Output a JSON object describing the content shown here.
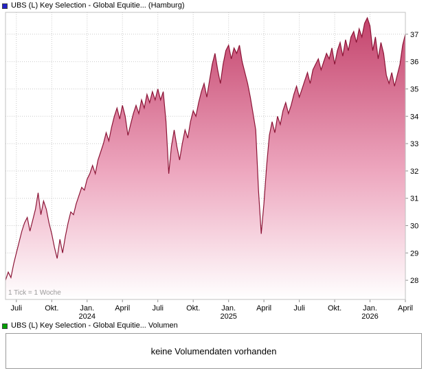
{
  "price_chart": {
    "title": "UBS (L) Key Selection - Global Equitie... (Hamburg)",
    "legend_color": "#2323c8"
  },
  "volume_chart": {
    "title": "UBS (L) Key Selection - Global Equitie... Volumen",
    "legend_color": "#00a000",
    "message": "keine Volumendaten vorhanden"
  },
  "style": {
    "line_color": "#8B1436",
    "fill_top": "#C24069",
    "fill_mid": "#EDA6BE",
    "fill_bottom": "#FFFFFF",
    "grid_color": "#c9c9c9",
    "axis_color": "#8f8f8f",
    "border_color": "#c0c0c0",
    "tick_note_color": "#9a9a9a"
  },
  "chart_data": {
    "type": "area",
    "title": "UBS (L) Key Selection - Global Equitie... (Hamburg)",
    "tick_note": "1 Tick = 1 Woche",
    "xlabel": "",
    "ylabel": "",
    "ylim": [
      27.3,
      37.8
    ],
    "y_ticks": [
      28,
      29,
      30,
      31,
      32,
      33,
      34,
      35,
      36,
      37
    ],
    "grid": true,
    "x_unit": "week",
    "x_ticks": [
      {
        "week": 4,
        "label": "Juli"
      },
      {
        "week": 17,
        "label": "Okt."
      },
      {
        "week": 30,
        "label": "Jan.",
        "year": "2024"
      },
      {
        "week": 43,
        "label": "April"
      },
      {
        "week": 56,
        "label": "Juli"
      },
      {
        "week": 69,
        "label": "Okt."
      },
      {
        "week": 82,
        "label": "Jan.",
        "year": "2025"
      },
      {
        "week": 95,
        "label": "April"
      },
      {
        "week": 108,
        "label": "Juli"
      },
      {
        "week": 121,
        "label": "Okt."
      },
      {
        "week": 134,
        "label": "Jan.",
        "year": "2026"
      },
      {
        "week": 147,
        "label": "April"
      }
    ],
    "values": [
      28.0,
      28.3,
      28.1,
      28.6,
      29.0,
      29.4,
      29.8,
      30.1,
      30.3,
      29.8,
      30.2,
      30.6,
      31.2,
      30.4,
      30.9,
      30.6,
      30.1,
      29.7,
      29.2,
      28.8,
      29.5,
      29.0,
      29.6,
      30.1,
      30.5,
      30.4,
      30.8,
      31.1,
      31.4,
      31.3,
      31.7,
      31.9,
      32.2,
      31.9,
      32.4,
      32.7,
      33.0,
      33.4,
      33.1,
      33.6,
      34.0,
      34.3,
      33.9,
      34.4,
      34.0,
      33.3,
      33.7,
      34.1,
      34.4,
      34.1,
      34.6,
      34.3,
      34.8,
      34.5,
      34.9,
      34.6,
      35.0,
      34.6,
      34.9,
      33.8,
      31.9,
      32.9,
      33.5,
      32.9,
      32.4,
      33.0,
      33.5,
      33.2,
      33.8,
      34.2,
      34.0,
      34.5,
      34.9,
      35.2,
      34.7,
      35.3,
      35.9,
      36.3,
      35.7,
      35.2,
      35.9,
      36.4,
      36.6,
      36.1,
      36.5,
      36.3,
      36.6,
      36.0,
      35.6,
      35.2,
      34.7,
      34.1,
      33.5,
      31.3,
      29.7,
      30.8,
      32.2,
      33.3,
      33.8,
      33.4,
      34.0,
      33.7,
      34.2,
      34.5,
      34.1,
      34.4,
      34.8,
      35.1,
      34.7,
      35.0,
      35.3,
      35.6,
      35.2,
      35.7,
      35.9,
      36.1,
      35.7,
      36.0,
      36.3,
      36.1,
      36.5,
      35.9,
      36.4,
      36.7,
      36.2,
      36.8,
      36.4,
      36.9,
      37.1,
      36.7,
      37.2,
      36.9,
      37.4,
      37.6,
      37.3,
      36.4,
      36.9,
      36.1,
      36.7,
      36.3,
      35.5,
      35.2,
      35.6,
      35.1,
      35.5,
      35.9,
      36.6,
      37.0
    ]
  }
}
